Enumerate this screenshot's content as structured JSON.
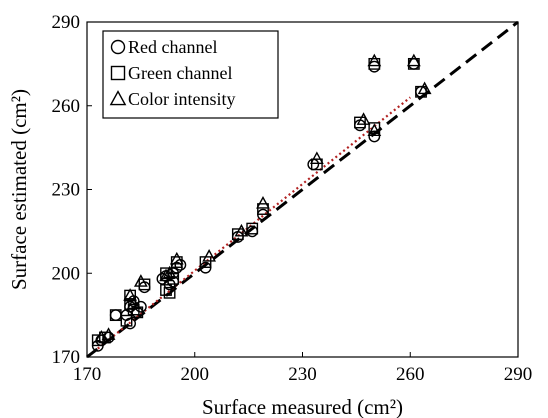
{
  "chart_data": {
    "type": "scatter",
    "xlabel": "Surface measured (cm²)",
    "ylabel": "Surface estimated (cm²)",
    "xlim": [
      170,
      290
    ],
    "ylim": [
      170,
      290
    ],
    "xticks": [
      "170",
      "200",
      "230",
      "260",
      "290"
    ],
    "yticks": [
      "170",
      "200",
      "230",
      "260",
      "290"
    ],
    "grid": false,
    "legend_position": "top-left",
    "series": [
      {
        "name": "Red channel",
        "marker": "circle",
        "points": [
          [
            173,
            174
          ],
          [
            174,
            176
          ],
          [
            176,
            177
          ],
          [
            178,
            185
          ],
          [
            181,
            185
          ],
          [
            182,
            182
          ],
          [
            182,
            188
          ],
          [
            183,
            190
          ],
          [
            184,
            186
          ],
          [
            185,
            188
          ],
          [
            186,
            195
          ],
          [
            191,
            198
          ],
          [
            192,
            199
          ],
          [
            193,
            196
          ],
          [
            194,
            197
          ],
          [
            194,
            200
          ],
          [
            195,
            202
          ],
          [
            196,
            203
          ],
          [
            203,
            202
          ],
          [
            212,
            213
          ],
          [
            216,
            215
          ],
          [
            219,
            221
          ],
          [
            233,
            239
          ],
          [
            246,
            253
          ],
          [
            250,
            249
          ],
          [
            250,
            274
          ],
          [
            261,
            275
          ],
          [
            263,
            265
          ]
        ]
      },
      {
        "name": "Green channel",
        "marker": "square",
        "points": [
          [
            173,
            176
          ],
          [
            175,
            177
          ],
          [
            178,
            185
          ],
          [
            181,
            183
          ],
          [
            182,
            189
          ],
          [
            182,
            192
          ],
          [
            183,
            187
          ],
          [
            184,
            186
          ],
          [
            186,
            196
          ],
          [
            192,
            200
          ],
          [
            192,
            194
          ],
          [
            193,
            193
          ],
          [
            194,
            198
          ],
          [
            195,
            204
          ],
          [
            203,
            204
          ],
          [
            212,
            214
          ],
          [
            216,
            216
          ],
          [
            219,
            223
          ],
          [
            234,
            239
          ],
          [
            246,
            254
          ],
          [
            250,
            252
          ],
          [
            250,
            275
          ],
          [
            261,
            275
          ],
          [
            263,
            265
          ]
        ]
      },
      {
        "name": "Color intensity",
        "marker": "triangle",
        "points": [
          [
            174,
            177
          ],
          [
            176,
            178
          ],
          [
            182,
            192
          ],
          [
            183,
            189
          ],
          [
            185,
            197
          ],
          [
            192,
            199
          ],
          [
            193,
            200
          ],
          [
            195,
            205
          ],
          [
            204,
            206
          ],
          [
            213,
            215
          ],
          [
            219,
            225
          ],
          [
            234,
            241
          ],
          [
            247,
            255
          ],
          [
            250,
            251
          ],
          [
            250,
            276
          ],
          [
            261,
            276
          ],
          [
            264,
            266
          ]
        ]
      }
    ],
    "lines": [
      {
        "style": "dashed",
        "color": "#000000",
        "from": [
          170,
          170
        ],
        "to": [
          290,
          290
        ]
      },
      {
        "style": "dotted",
        "color": "#b22222",
        "from": [
          173,
          173
        ],
        "to": [
          260,
          263
        ]
      }
    ]
  }
}
